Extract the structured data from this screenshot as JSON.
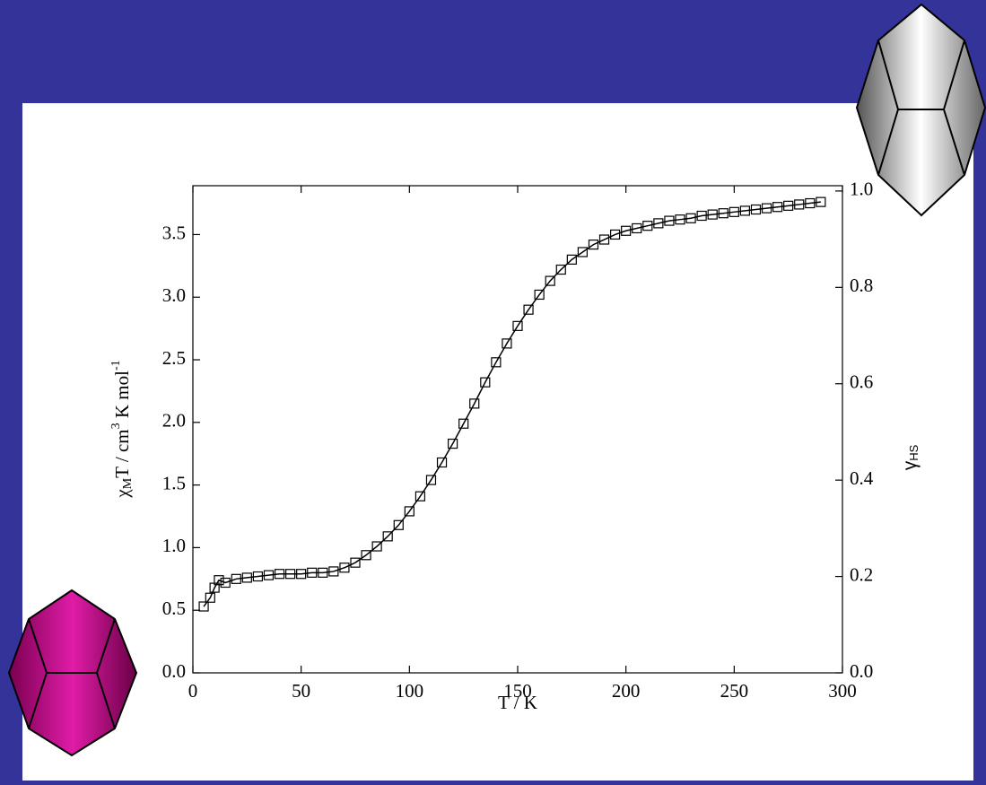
{
  "chart_data": {
    "type": "scatter",
    "xlabel": "T / K",
    "ylabel": {
      "parts": [
        "χ",
        "M",
        "T / cm",
        "3",
        " K mol",
        "-1"
      ]
    },
    "y2label": {
      "parts": [
        "γ",
        "HS"
      ]
    },
    "x": [
      5,
      8,
      10,
      12,
      15,
      20,
      25,
      30,
      35,
      40,
      45,
      50,
      55,
      60,
      65,
      70,
      75,
      80,
      85,
      90,
      95,
      100,
      105,
      110,
      115,
      120,
      125,
      130,
      135,
      140,
      145,
      150,
      155,
      160,
      165,
      170,
      175,
      180,
      185,
      190,
      195,
      200,
      205,
      210,
      215,
      220,
      225,
      230,
      235,
      240,
      245,
      250,
      255,
      260,
      265,
      270,
      275,
      280,
      285,
      290
    ],
    "series": [
      {
        "color": "#000000",
        "marker": "square",
        "connect": true,
        "values": [
          0.53,
          0.6,
          0.68,
          0.74,
          0.72,
          0.75,
          0.76,
          0.77,
          0.78,
          0.79,
          0.79,
          0.79,
          0.8,
          0.8,
          0.81,
          0.84,
          0.88,
          0.94,
          1.01,
          1.09,
          1.18,
          1.29,
          1.41,
          1.54,
          1.68,
          1.83,
          1.99,
          2.15,
          2.32,
          2.48,
          2.63,
          2.77,
          2.9,
          3.02,
          3.13,
          3.22,
          3.3,
          3.36,
          3.42,
          3.46,
          3.5,
          3.53,
          3.55,
          3.57,
          3.59,
          3.61,
          3.62,
          3.63,
          3.65,
          3.66,
          3.67,
          3.68,
          3.69,
          3.7,
          3.71,
          3.72,
          3.73,
          3.74,
          3.75,
          3.76
        ]
      }
    ],
    "xlim": [
      0,
      300
    ],
    "xticks": [
      0,
      50,
      100,
      150,
      200,
      250,
      300
    ],
    "ylim": [
      0,
      3.89
    ],
    "yticks": [
      {
        "value": 0,
        "label": "0.0"
      },
      0.5,
      {
        "value": 1,
        "label": "1.0"
      },
      1.5,
      {
        "value": 2,
        "label": "2.0"
      },
      2.5,
      {
        "value": 3,
        "label": "3.0"
      },
      3.5
    ],
    "y2lim": [
      0,
      1.011
    ],
    "y2ticks": [
      {
        "value": 0,
        "label": "0.0"
      },
      0.2,
      0.4,
      0.6,
      0.8,
      {
        "value": 1,
        "label": "1.0"
      }
    ],
    "grid": false
  }
}
